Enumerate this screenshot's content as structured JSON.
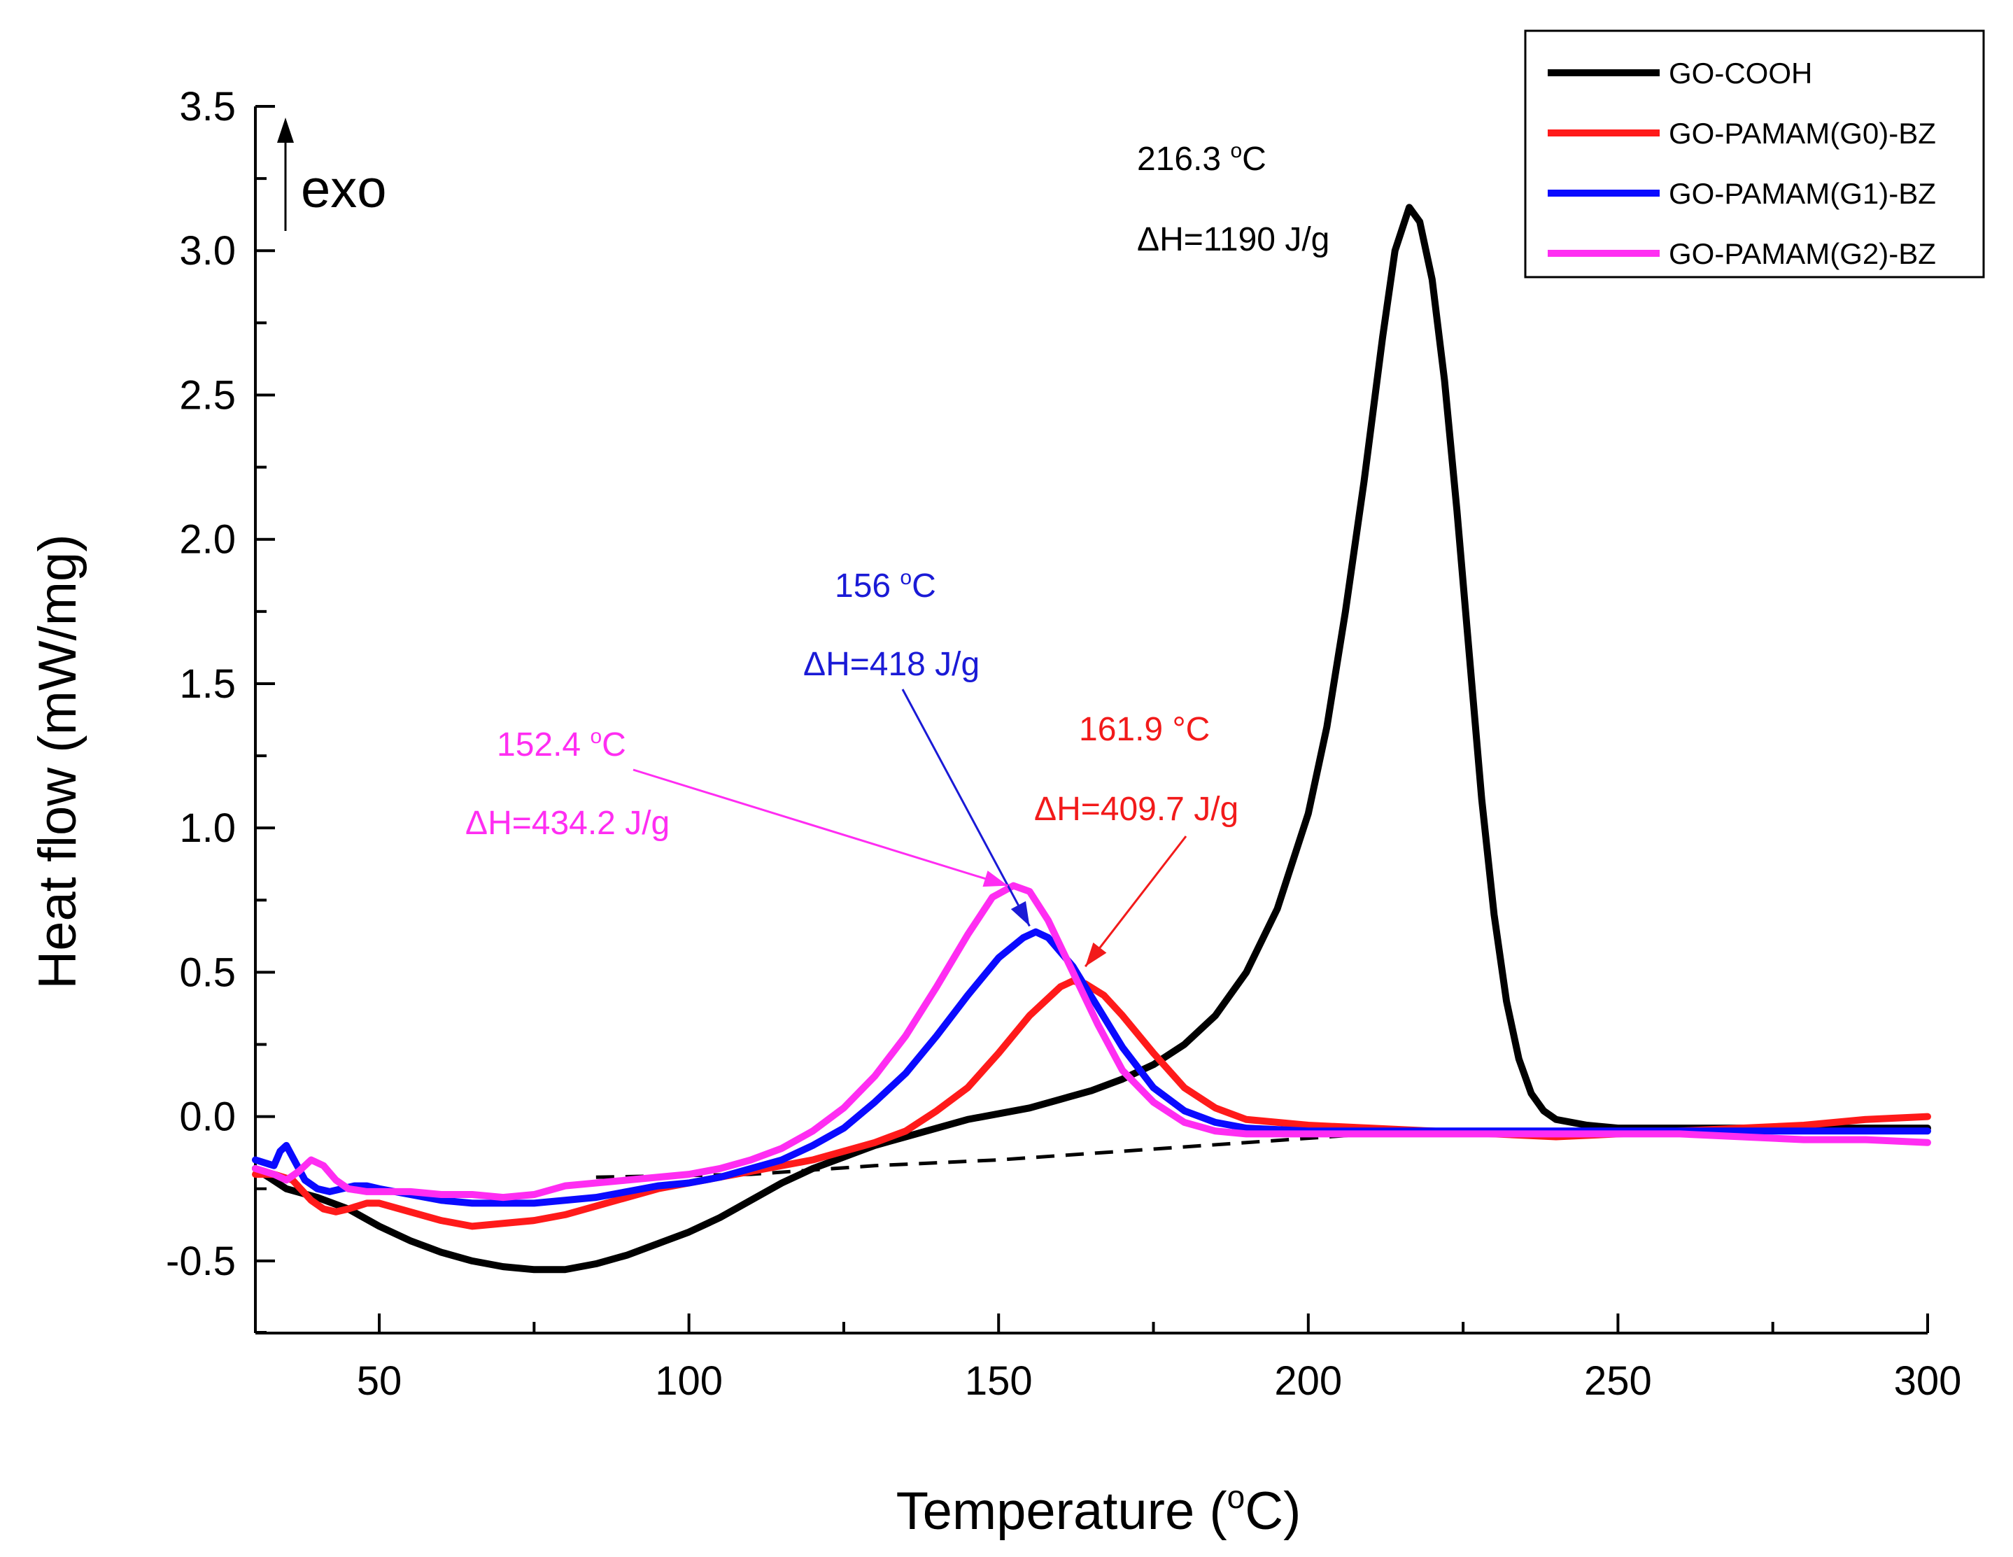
{
  "chart_data": {
    "type": "line",
    "xlabel_main": "Temperature (",
    "xlabel_sup": "o",
    "xlabel_end": "C)",
    "ylabel": "Heat flow (mW/mg)",
    "xlim": [
      30,
      300
    ],
    "ylim": [
      -0.75,
      3.5
    ],
    "x_ticks": [
      50,
      100,
      150,
      200,
      250,
      300
    ],
    "y_ticks": [
      3.5,
      3.0,
      2.5,
      2.0,
      1.5,
      1.0,
      0.5,
      0.0,
      -0.5
    ],
    "y_tick_labels": [
      "3.5",
      "3.0",
      "2.5",
      "2.0",
      "1.5",
      "1.0",
      "0.5",
      "0.0",
      "-0.5"
    ],
    "exo_label": "exo",
    "series": [
      {
        "name": "GO-COOH",
        "color": "#000000",
        "points": [
          [
            30,
            -0.18
          ],
          [
            35,
            -0.25
          ],
          [
            40,
            -0.28
          ],
          [
            45,
            -0.32
          ],
          [
            50,
            -0.38
          ],
          [
            55,
            -0.43
          ],
          [
            60,
            -0.47
          ],
          [
            65,
            -0.5
          ],
          [
            70,
            -0.52
          ],
          [
            75,
            -0.53
          ],
          [
            80,
            -0.53
          ],
          [
            85,
            -0.51
          ],
          [
            90,
            -0.48
          ],
          [
            95,
            -0.44
          ],
          [
            100,
            -0.4
          ],
          [
            105,
            -0.35
          ],
          [
            110,
            -0.29
          ],
          [
            115,
            -0.23
          ],
          [
            120,
            -0.18
          ],
          [
            125,
            -0.14
          ],
          [
            130,
            -0.1
          ],
          [
            135,
            -0.07
          ],
          [
            140,
            -0.04
          ],
          [
            145,
            -0.01
          ],
          [
            150,
            0.01
          ],
          [
            155,
            0.03
          ],
          [
            160,
            0.06
          ],
          [
            165,
            0.09
          ],
          [
            170,
            0.13
          ],
          [
            175,
            0.18
          ],
          [
            180,
            0.25
          ],
          [
            185,
            0.35
          ],
          [
            190,
            0.5
          ],
          [
            195,
            0.72
          ],
          [
            200,
            1.05
          ],
          [
            203,
            1.35
          ],
          [
            206,
            1.75
          ],
          [
            209,
            2.2
          ],
          [
            212,
            2.7
          ],
          [
            214,
            3.0
          ],
          [
            216.3,
            3.15
          ],
          [
            218,
            3.1
          ],
          [
            220,
            2.9
          ],
          [
            222,
            2.55
          ],
          [
            224,
            2.1
          ],
          [
            226,
            1.6
          ],
          [
            228,
            1.1
          ],
          [
            230,
            0.7
          ],
          [
            232,
            0.4
          ],
          [
            234,
            0.2
          ],
          [
            236,
            0.08
          ],
          [
            238,
            0.02
          ],
          [
            240,
            -0.01
          ],
          [
            245,
            -0.03
          ],
          [
            250,
            -0.04
          ],
          [
            260,
            -0.04
          ],
          [
            270,
            -0.04
          ],
          [
            280,
            -0.04
          ],
          [
            290,
            -0.04
          ],
          [
            300,
            -0.04
          ]
        ]
      },
      {
        "name": "GO-PAMAM(G0)-BZ",
        "color": "#ff1a1a",
        "points": [
          [
            30,
            -0.2
          ],
          [
            33,
            -0.2
          ],
          [
            36,
            -0.22
          ],
          [
            39,
            -0.29
          ],
          [
            41,
            -0.32
          ],
          [
            43,
            -0.33
          ],
          [
            45,
            -0.32
          ],
          [
            48,
            -0.3
          ],
          [
            50,
            -0.3
          ],
          [
            55,
            -0.33
          ],
          [
            60,
            -0.36
          ],
          [
            65,
            -0.38
          ],
          [
            70,
            -0.37
          ],
          [
            75,
            -0.36
          ],
          [
            80,
            -0.34
          ],
          [
            85,
            -0.31
          ],
          [
            90,
            -0.28
          ],
          [
            95,
            -0.25
          ],
          [
            100,
            -0.23
          ],
          [
            105,
            -0.21
          ],
          [
            110,
            -0.19
          ],
          [
            115,
            -0.17
          ],
          [
            120,
            -0.15
          ],
          [
            125,
            -0.12
          ],
          [
            130,
            -0.09
          ],
          [
            135,
            -0.05
          ],
          [
            140,
            0.02
          ],
          [
            145,
            0.1
          ],
          [
            150,
            0.22
          ],
          [
            155,
            0.35
          ],
          [
            160,
            0.45
          ],
          [
            162,
            0.47
          ],
          [
            164,
            0.46
          ],
          [
            167,
            0.42
          ],
          [
            170,
            0.35
          ],
          [
            175,
            0.22
          ],
          [
            180,
            0.1
          ],
          [
            185,
            0.03
          ],
          [
            190,
            -0.01
          ],
          [
            195,
            -0.02
          ],
          [
            200,
            -0.03
          ],
          [
            210,
            -0.04
          ],
          [
            220,
            -0.05
          ],
          [
            230,
            -0.06
          ],
          [
            240,
            -0.07
          ],
          [
            250,
            -0.06
          ],
          [
            260,
            -0.05
          ],
          [
            270,
            -0.04
          ],
          [
            280,
            -0.03
          ],
          [
            290,
            -0.01
          ],
          [
            300,
            0.0
          ]
        ]
      },
      {
        "name": "GO-PAMAM(G1)-BZ",
        "color": "#0a0aff",
        "points": [
          [
            30,
            -0.15
          ],
          [
            33,
            -0.17
          ],
          [
            34,
            -0.12
          ],
          [
            35,
            -0.1
          ],
          [
            36,
            -0.14
          ],
          [
            38,
            -0.22
          ],
          [
            40,
            -0.25
          ],
          [
            42,
            -0.26
          ],
          [
            44,
            -0.25
          ],
          [
            46,
            -0.24
          ],
          [
            48,
            -0.24
          ],
          [
            50,
            -0.25
          ],
          [
            55,
            -0.27
          ],
          [
            60,
            -0.29
          ],
          [
            65,
            -0.3
          ],
          [
            70,
            -0.3
          ],
          [
            75,
            -0.3
          ],
          [
            80,
            -0.29
          ],
          [
            85,
            -0.28
          ],
          [
            90,
            -0.26
          ],
          [
            95,
            -0.24
          ],
          [
            100,
            -0.23
          ],
          [
            105,
            -0.21
          ],
          [
            110,
            -0.18
          ],
          [
            115,
            -0.15
          ],
          [
            120,
            -0.1
          ],
          [
            125,
            -0.04
          ],
          [
            130,
            0.05
          ],
          [
            135,
            0.15
          ],
          [
            140,
            0.28
          ],
          [
            145,
            0.42
          ],
          [
            150,
            0.55
          ],
          [
            154,
            0.62
          ],
          [
            156,
            0.64
          ],
          [
            158,
            0.62
          ],
          [
            162,
            0.52
          ],
          [
            166,
            0.38
          ],
          [
            170,
            0.24
          ],
          [
            175,
            0.1
          ],
          [
            180,
            0.02
          ],
          [
            185,
            -0.02
          ],
          [
            190,
            -0.04
          ],
          [
            200,
            -0.05
          ],
          [
            210,
            -0.05
          ],
          [
            220,
            -0.05
          ],
          [
            230,
            -0.05
          ],
          [
            240,
            -0.05
          ],
          [
            250,
            -0.05
          ],
          [
            260,
            -0.05
          ],
          [
            270,
            -0.05
          ],
          [
            280,
            -0.05
          ],
          [
            290,
            -0.05
          ],
          [
            300,
            -0.05
          ]
        ]
      },
      {
        "name": "GO-PAMAM(G2)-BZ",
        "color": "#ff2df2",
        "points": [
          [
            30,
            -0.18
          ],
          [
            33,
            -0.2
          ],
          [
            35,
            -0.22
          ],
          [
            37,
            -0.19
          ],
          [
            39,
            -0.15
          ],
          [
            41,
            -0.17
          ],
          [
            43,
            -0.22
          ],
          [
            45,
            -0.25
          ],
          [
            48,
            -0.26
          ],
          [
            50,
            -0.26
          ],
          [
            55,
            -0.26
          ],
          [
            60,
            -0.27
          ],
          [
            65,
            -0.27
          ],
          [
            70,
            -0.28
          ],
          [
            75,
            -0.27
          ],
          [
            80,
            -0.24
          ],
          [
            85,
            -0.23
          ],
          [
            90,
            -0.22
          ],
          [
            95,
            -0.21
          ],
          [
            100,
            -0.2
          ],
          [
            105,
            -0.18
          ],
          [
            110,
            -0.15
          ],
          [
            115,
            -0.11
          ],
          [
            120,
            -0.05
          ],
          [
            125,
            0.03
          ],
          [
            130,
            0.14
          ],
          [
            135,
            0.28
          ],
          [
            140,
            0.45
          ],
          [
            145,
            0.63
          ],
          [
            149,
            0.76
          ],
          [
            152.4,
            0.8
          ],
          [
            155,
            0.78
          ],
          [
            158,
            0.68
          ],
          [
            162,
            0.5
          ],
          [
            166,
            0.32
          ],
          [
            170,
            0.16
          ],
          [
            175,
            0.05
          ],
          [
            180,
            -0.02
          ],
          [
            185,
            -0.05
          ],
          [
            190,
            -0.06
          ],
          [
            200,
            -0.06
          ],
          [
            210,
            -0.06
          ],
          [
            220,
            -0.06
          ],
          [
            230,
            -0.06
          ],
          [
            240,
            -0.06
          ],
          [
            250,
            -0.06
          ],
          [
            260,
            -0.06
          ],
          [
            270,
            -0.07
          ],
          [
            280,
            -0.08
          ],
          [
            290,
            -0.08
          ],
          [
            300,
            -0.09
          ]
        ]
      }
    ],
    "baseline": {
      "name": "baseline",
      "color": "#000000",
      "dash": true,
      "points": [
        [
          85,
          -0.21
        ],
        [
          110,
          -0.2
        ],
        [
          130,
          -0.17
        ],
        [
          150,
          -0.15
        ],
        [
          170,
          -0.12
        ],
        [
          190,
          -0.09
        ],
        [
          210,
          -0.06
        ],
        [
          220,
          -0.06
        ]
      ]
    },
    "annotations": [
      {
        "id": "black",
        "color": "#000000",
        "temp": "216.3",
        "unit_sup": "o",
        "unit": "C",
        "dh": "ΔH=1190 J/g"
      },
      {
        "id": "blue",
        "color": "#1a1ad6",
        "temp": "156",
        "unit_sup": "o",
        "unit": "C",
        "dh": "ΔH=418 J/g"
      },
      {
        "id": "magenta",
        "color": "#ff2df2",
        "temp": "152.4",
        "unit_sup": "o",
        "unit": "C",
        "dh": "ΔH=434.2 J/g"
      },
      {
        "id": "red",
        "color": "#f21a1a",
        "temp": "161.9",
        "unit_sup": "",
        "unit": "°C",
        "dh": "ΔH=409.7 J/g"
      }
    ],
    "legend_position": "top-right"
  }
}
